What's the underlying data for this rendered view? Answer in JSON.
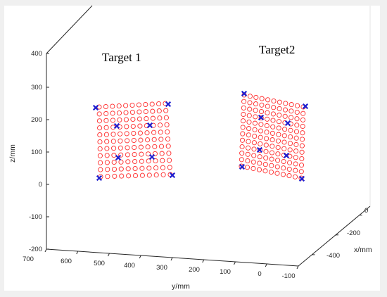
{
  "chart_data": {
    "type": "scatter3d",
    "title": "",
    "annotations": [
      {
        "text": "Target 1"
      },
      {
        "text": "Target2"
      }
    ],
    "xlabel": "x/mm",
    "ylabel": "y/mm",
    "zlabel": "z/mm",
    "x_ticks": [
      "0",
      "-200",
      "-400"
    ],
    "y_ticks": [
      "700",
      "600",
      "500",
      "400",
      "300",
      "200",
      "100",
      "0",
      "-100"
    ],
    "z_ticks": [
      "400",
      "300",
      "200",
      "100",
      "0",
      "-100",
      "-200"
    ],
    "xlim": [
      -500,
      50
    ],
    "ylim": [
      -100,
      700
    ],
    "zlim": [
      -200,
      400
    ],
    "grid": false,
    "box": true,
    "series": [
      {
        "marker": "circle",
        "color": "#ff0000",
        "points": [
          {
            "x": -150,
            "y": 540,
            "z": 232
          },
          {
            "x": -150,
            "y": 310,
            "z": 240
          },
          {
            "x": -150,
            "y": 300,
            "z": 18
          },
          {
            "x": -150,
            "y": 530,
            "z": 22
          },
          {
            "x": -150,
            "y": 80,
            "z": 262
          },
          {
            "x": -150,
            "y": -130,
            "z": 290
          },
          {
            "x": -150,
            "y": -160,
            "z": 50
          },
          {
            "x": -150,
            "y": 70,
            "z": 82
          }
        ]
      },
      {
        "marker": "x",
        "color": "#1f1fcf",
        "points": [
          {
            "x": -150,
            "y": 540,
            "z": 236
          },
          {
            "x": -150,
            "y": 310,
            "z": 242
          },
          {
            "x": -150,
            "y": 300,
            "z": 28
          },
          {
            "x": -150,
            "y": 530,
            "z": 22
          },
          {
            "x": -150,
            "y": 480,
            "z": 182
          },
          {
            "x": -150,
            "y": 355,
            "z": 182
          },
          {
            "x": -150,
            "y": 470,
            "z": 82
          },
          {
            "x": -150,
            "y": 365,
            "z": 86
          },
          {
            "x": -150,
            "y": 80,
            "z": 262
          },
          {
            "x": -150,
            "y": -130,
            "z": 290
          },
          {
            "x": -150,
            "y": -160,
            "z": 50
          },
          {
            "x": -150,
            "y": 70,
            "z": 82
          },
          {
            "x": -150,
            "y": 40,
            "z": 213
          },
          {
            "x": -150,
            "y": -55,
            "z": 192
          },
          {
            "x": -150,
            "y": 30,
            "z": 108
          },
          {
            "x": -150,
            "y": -75,
            "z": 92
          }
        ]
      }
    ]
  }
}
